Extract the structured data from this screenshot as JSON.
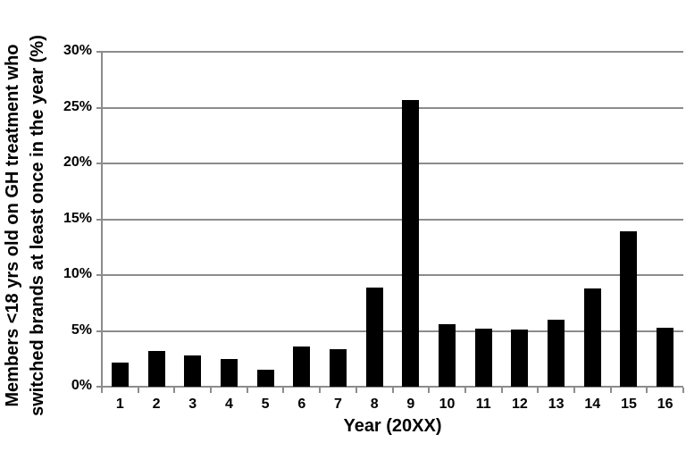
{
  "figure": {
    "background_color": "#ffffff",
    "bar_color": "#000000",
    "grid_color": "#8c8c8c",
    "axis_color": "#8c8c8c",
    "text_color": "#000000"
  },
  "chart_data": {
    "type": "bar",
    "title": "",
    "xlabel": "Year (20XX)",
    "ylabel": "Members <18 yrs old on GH treatment who switched brands at least once in the year (%)",
    "ylabel_line1": "Members <18 yrs old on GH treatment who",
    "ylabel_line2": "switched brands at least once in the year (%)",
    "categories": [
      "1",
      "2",
      "3",
      "4",
      "5",
      "6",
      "7",
      "8",
      "9",
      "10",
      "11",
      "12",
      "13",
      "14",
      "15",
      "16"
    ],
    "values": [
      2.2,
      3.2,
      2.8,
      2.5,
      1.5,
      3.6,
      3.4,
      8.9,
      25.7,
      5.6,
      5.2,
      5.1,
      6.0,
      8.8,
      13.9,
      5.3
    ],
    "ylim": [
      0,
      30
    ],
    "ytick_step": 5,
    "ytick_labels": [
      "0%",
      "5%",
      "10%",
      "15%",
      "20%",
      "25%",
      "30%"
    ],
    "grid": true,
    "legend": null
  }
}
